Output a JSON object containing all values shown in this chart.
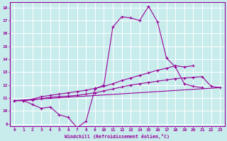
{
  "bg_color": "#c8ecec",
  "grid_color": "#ffffff",
  "line_color": "#990099",
  "xlabel": "Windchill (Refroidissement éolien,°C)",
  "xlim": [
    -0.5,
    23.5
  ],
  "ylim": [
    8.8,
    18.4
  ],
  "yticks": [
    9,
    10,
    11,
    12,
    13,
    14,
    15,
    16,
    17,
    18
  ],
  "xticks": [
    0,
    1,
    2,
    3,
    4,
    5,
    6,
    7,
    8,
    9,
    10,
    11,
    12,
    13,
    14,
    15,
    16,
    17,
    18,
    19,
    20,
    21,
    22,
    23
  ],
  "series": [
    {
      "x": [
        0,
        1,
        2,
        3,
        4,
        5,
        6,
        7,
        8,
        9,
        10,
        11,
        12,
        13,
        14,
        15,
        16,
        17,
        18,
        19,
        20,
        21
      ],
      "y": [
        10.8,
        10.8,
        10.5,
        10.2,
        10.3,
        9.7,
        9.5,
        8.7,
        9.2,
        11.7,
        12.0,
        16.5,
        17.3,
        17.2,
        17.0,
        18.1,
        16.9,
        14.1,
        13.4,
        12.1,
        11.9,
        11.8
      ]
    },
    {
      "x": [
        0,
        1,
        2,
        3,
        4,
        5,
        6,
        7,
        8,
        9,
        10,
        11,
        12,
        13,
        14,
        15,
        16,
        17,
        18,
        19,
        20
      ],
      "y": [
        10.8,
        10.8,
        10.9,
        11.1,
        11.2,
        11.3,
        11.4,
        11.5,
        11.6,
        11.75,
        11.9,
        12.1,
        12.35,
        12.55,
        12.75,
        12.95,
        13.15,
        13.3,
        13.5,
        13.4,
        13.5
      ]
    },
    {
      "x": [
        0,
        1,
        2,
        3,
        4,
        5,
        6,
        7,
        8,
        9,
        10,
        11,
        12,
        13,
        14,
        15,
        16,
        17,
        18,
        19,
        20,
        21,
        22,
        23
      ],
      "y": [
        10.8,
        10.8,
        10.85,
        10.95,
        11.05,
        11.1,
        11.15,
        11.2,
        11.3,
        11.4,
        11.55,
        11.7,
        11.85,
        12.0,
        12.1,
        12.2,
        12.3,
        12.4,
        12.5,
        12.55,
        12.6,
        12.65,
        11.9,
        11.8
      ]
    },
    {
      "x": [
        0,
        23
      ],
      "y": [
        10.8,
        11.8
      ]
    }
  ]
}
